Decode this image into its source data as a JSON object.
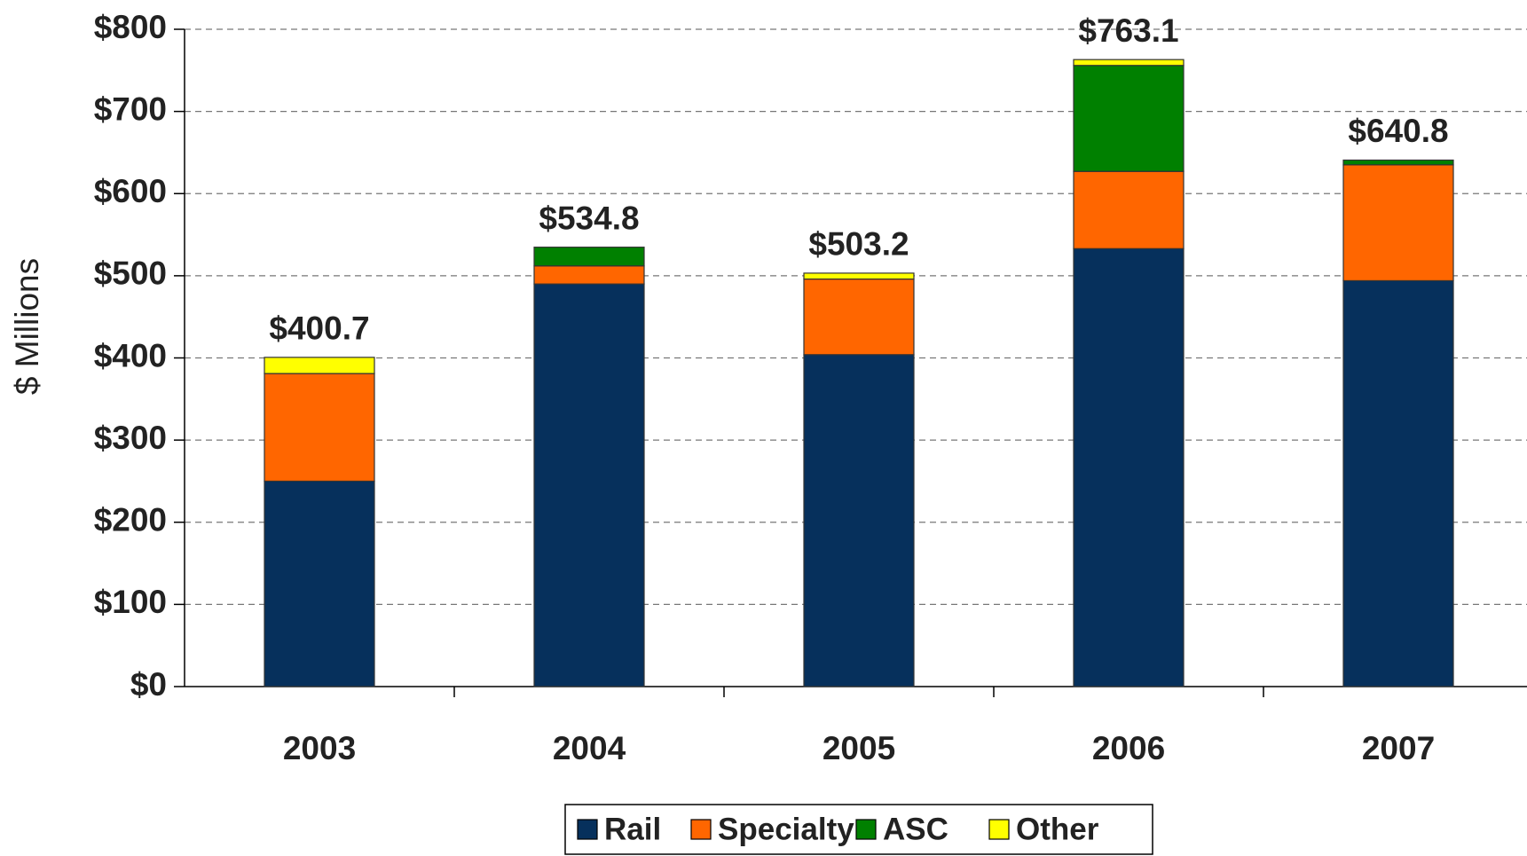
{
  "chart_data": {
    "type": "stacked_bar",
    "y_label": "$ Millions",
    "categories": [
      "2003",
      "2004",
      "2005",
      "2006",
      "2007"
    ],
    "series": [
      {
        "name": "Rail",
        "color": "#06305c",
        "values": [
          250,
          490,
          404,
          533,
          494
        ]
      },
      {
        "name": "Specialty",
        "color": "#ff6600",
        "values": [
          131,
          22,
          92,
          94,
          141
        ]
      },
      {
        "name": "ASC",
        "color": "#008000",
        "values": [
          0,
          22.8,
          0,
          129,
          5.8
        ]
      },
      {
        "name": "Other",
        "color": "#ffff00",
        "values": [
          19.7,
          0,
          7.2,
          7.1,
          0
        ]
      }
    ],
    "totals": [
      400.7,
      534.8,
      503.2,
      763.1,
      640.8
    ],
    "total_labels": [
      "$400.7",
      "$534.8",
      "$503.2",
      "$763.1",
      "$640.8"
    ],
    "ylim": [
      0,
      800
    ],
    "yticks": [
      {
        "value": 0,
        "label": "$0"
      },
      {
        "value": 100,
        "label": "$100"
      },
      {
        "value": 200,
        "label": "$200"
      },
      {
        "value": 300,
        "label": "$300"
      },
      {
        "value": 400,
        "label": "$400"
      },
      {
        "value": 500,
        "label": "$500"
      },
      {
        "value": 600,
        "label": "$600"
      },
      {
        "value": 700,
        "label": "$700"
      },
      {
        "value": 800,
        "label": "$800"
      }
    ],
    "grid": true,
    "legend": "bottom"
  }
}
